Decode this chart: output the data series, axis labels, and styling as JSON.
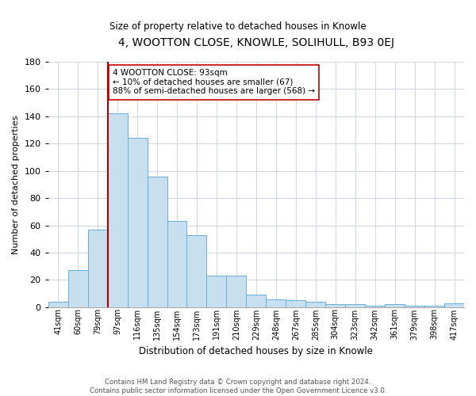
{
  "title": "4, WOOTTON CLOSE, KNOWLE, SOLIHULL, B93 0EJ",
  "subtitle": "Size of property relative to detached houses in Knowle",
  "xlabel": "Distribution of detached houses by size in Knowle",
  "ylabel": "Number of detached properties",
  "bar_labels": [
    "41sqm",
    "60sqm",
    "79sqm",
    "97sqm",
    "116sqm",
    "135sqm",
    "154sqm",
    "173sqm",
    "191sqm",
    "210sqm",
    "229sqm",
    "248sqm",
    "267sqm",
    "285sqm",
    "304sqm",
    "323sqm",
    "342sqm",
    "361sqm",
    "379sqm",
    "398sqm",
    "417sqm"
  ],
  "bar_values": [
    4,
    27,
    57,
    142,
    124,
    96,
    63,
    53,
    23,
    23,
    9,
    6,
    5,
    4,
    2,
    2,
    1,
    2,
    1,
    1,
    3
  ],
  "bar_color": "#c8dff0",
  "bar_edge_color": "#6aaed6",
  "vline_index": 3,
  "vline_color": "#aa0000",
  "ylim": [
    0,
    180
  ],
  "yticks": [
    0,
    20,
    40,
    60,
    80,
    100,
    120,
    140,
    160,
    180
  ],
  "annotation_title": "4 WOOTTON CLOSE: 93sqm",
  "annotation_line1": "← 10% of detached houses are smaller (67)",
  "annotation_line2": "88% of semi-detached houses are larger (568) →",
  "footer_line1": "Contains HM Land Registry data © Crown copyright and database right 2024.",
  "footer_line2": "Contains public sector information licensed under the Open Government Licence v3.0.",
  "background_color": "#ffffff",
  "grid_color": "#d0d8e4"
}
